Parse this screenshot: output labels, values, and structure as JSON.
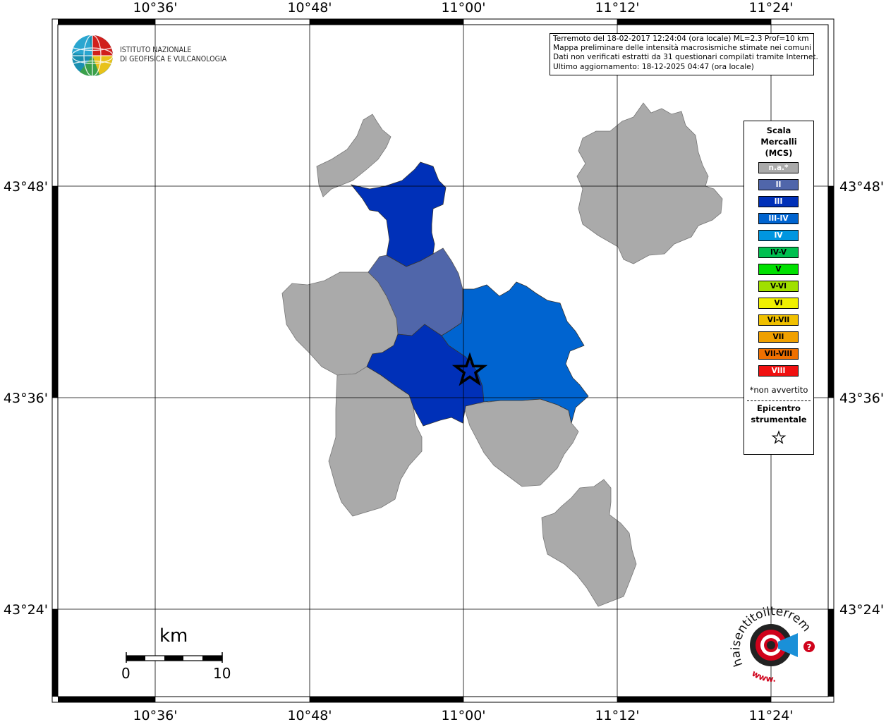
{
  "axes": {
    "top_lon": [
      "10°36'",
      "10°48'",
      "11°00'",
      "11°12'",
      "11°24'"
    ],
    "bottom_lon": [
      "10°36'",
      "10°48'",
      "11°00'",
      "11°12'",
      "11°24'"
    ],
    "left_lat": [
      "43°48'",
      "43°36'",
      "43°24'"
    ],
    "right_lat": [
      "43°48'",
      "43°36'",
      "43°24'"
    ]
  },
  "logo": {
    "line1": "ISTITUTO NAZIONALE",
    "line2": "DI GEOFISICA E VULCANOLOGIA"
  },
  "info_box": {
    "line1": "Terremoto del 18-02-2017 12:24:04 (ora locale) ML=2.3 Prof=10 km",
    "line2": "Mappa preliminare delle intensità macrosismiche stimate nei comuni",
    "line3": "Dati non verificati estratti da 31 questionari compilati tramite Internet.",
    "line4": "Ultimo aggiornamento: 18-12-2025 04:47 (ora locale)"
  },
  "legend": {
    "title_1": "Scala",
    "title_2": "Mercalli",
    "title_3": "(MCS)",
    "items": [
      {
        "label": "n.a.*",
        "color": "#aaaaaa",
        "text_color": "#ffffff"
      },
      {
        "label": "II",
        "color": "#5066aa",
        "text_color": "#ffffff"
      },
      {
        "label": "III",
        "color": "#0030b8",
        "text_color": "#ffffff"
      },
      {
        "label": "III-IV",
        "color": "#0064d0",
        "text_color": "#ffffff"
      },
      {
        "label": "IV",
        "color": "#0096e0",
        "text_color": "#ffffff"
      },
      {
        "label": "IV-V",
        "color": "#00c050",
        "text_color": "#000000"
      },
      {
        "label": "V",
        "color": "#00e000",
        "text_color": "#000000"
      },
      {
        "label": "V-VI",
        "color": "#a0e000",
        "text_color": "#000000"
      },
      {
        "label": "VI",
        "color": "#f0f000",
        "text_color": "#000000"
      },
      {
        "label": "VI-VII",
        "color": "#f0c000",
        "text_color": "#000000"
      },
      {
        "label": "VII",
        "color": "#f0a000",
        "text_color": "#000000"
      },
      {
        "label": "VII-VIII",
        "color": "#f07000",
        "text_color": "#000000"
      },
      {
        "label": "VIII",
        "color": "#f01010",
        "text_color": "#ffffff"
      }
    ],
    "non_felt_note": "*non avvertito",
    "epicenter_1": "Epicentro",
    "epicenter_2": "strumentale"
  },
  "scalebar": {
    "unit": "km",
    "start": "0",
    "end": "10"
  },
  "map_colors": {
    "na": "#aaaaaa",
    "II": "#5066aa",
    "III": "#0030b8",
    "III-IV": "#0064d0"
  },
  "site_logo": {
    "text": "haisentitoilterremoto.it",
    "prefix": "www.",
    "red": "#d0021b",
    "blue": "#1a90d8"
  }
}
